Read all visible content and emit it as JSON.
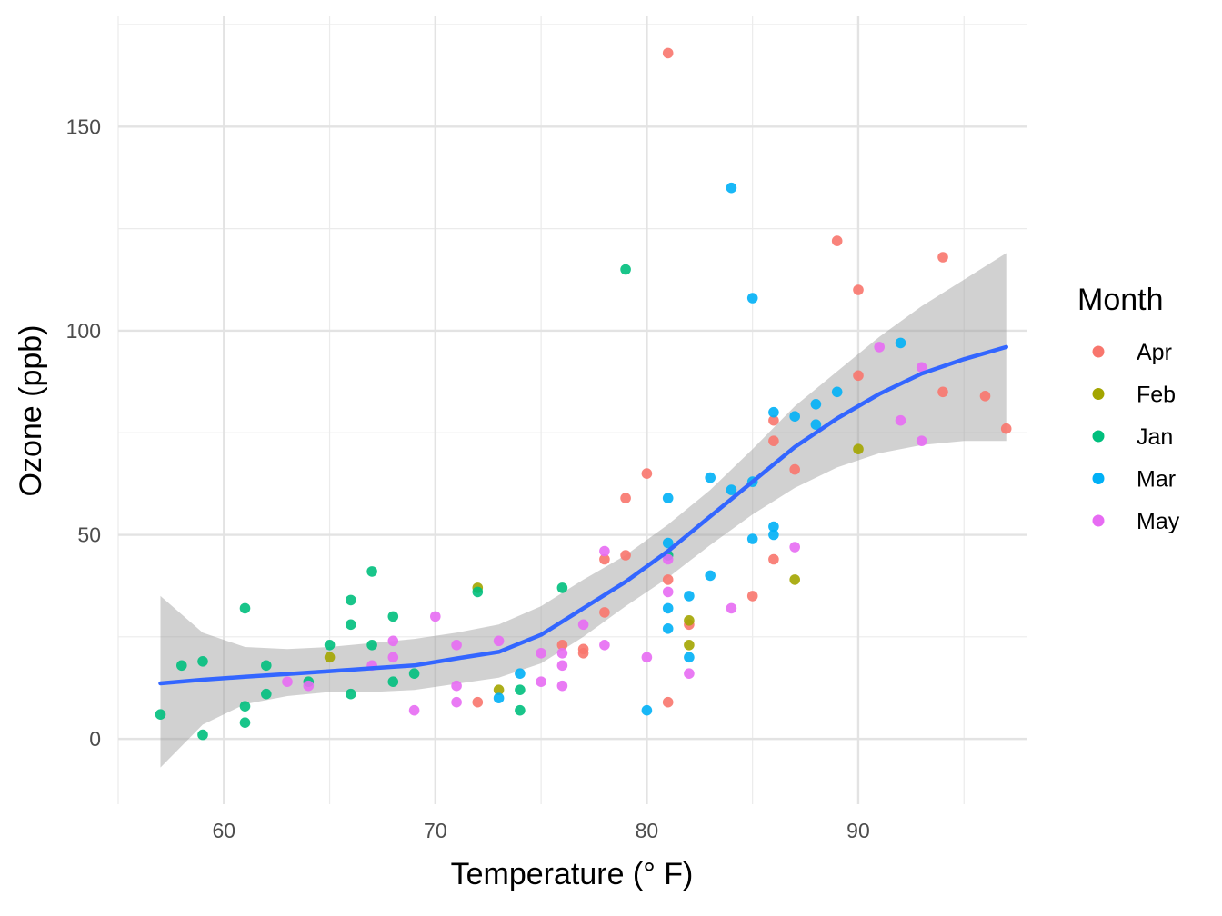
{
  "chart_data": {
    "type": "scatter",
    "title": "",
    "xlabel": "Temperature (° F)",
    "ylabel": "Ozone (ppb)",
    "xlim": [
      55,
      98
    ],
    "ylim": [
      -16,
      177
    ],
    "x_ticks": [
      60,
      70,
      80,
      90
    ],
    "y_ticks": [
      0,
      50,
      100,
      150
    ],
    "grid": true,
    "legend": {
      "title": "Month",
      "position": "right"
    },
    "series": [
      {
        "name": "Apr",
        "color": "#F8766D",
        "points": [
          [
            81,
            168
          ],
          [
            89,
            122
          ],
          [
            94,
            118
          ],
          [
            90,
            110
          ],
          [
            90,
            89
          ],
          [
            94,
            85
          ],
          [
            96,
            84
          ],
          [
            97,
            76
          ],
          [
            86,
            78
          ],
          [
            86,
            73
          ],
          [
            87,
            66
          ],
          [
            80,
            65
          ],
          [
            79,
            59
          ],
          [
            79,
            45
          ],
          [
            78,
            44
          ],
          [
            86,
            44
          ],
          [
            85,
            35
          ],
          [
            81,
            39
          ],
          [
            82,
            28
          ],
          [
            78,
            31
          ],
          [
            76,
            23
          ],
          [
            77,
            21
          ],
          [
            77,
            22
          ],
          [
            72,
            9
          ],
          [
            81,
            9
          ]
        ]
      },
      {
        "name": "Feb",
        "color": "#A3A500",
        "points": [
          [
            90,
            71
          ],
          [
            87,
            39
          ],
          [
            82,
            29
          ],
          [
            82,
            23
          ],
          [
            72,
            37
          ],
          [
            73,
            12
          ],
          [
            65,
            20
          ]
        ]
      },
      {
        "name": "Jan",
        "color": "#00BF7D",
        "points": [
          [
            79,
            115
          ],
          [
            67,
            41
          ],
          [
            72,
            36
          ],
          [
            76,
            37
          ],
          [
            61,
            32
          ],
          [
            66,
            34
          ],
          [
            68,
            30
          ],
          [
            66,
            28
          ],
          [
            65,
            23
          ],
          [
            67,
            23
          ],
          [
            62,
            18
          ],
          [
            58,
            18
          ],
          [
            59,
            19
          ],
          [
            64,
            14
          ],
          [
            68,
            14
          ],
          [
            69,
            16
          ],
          [
            61,
            8
          ],
          [
            62,
            11
          ],
          [
            66,
            11
          ],
          [
            74,
            12
          ],
          [
            74,
            7
          ],
          [
            57,
            6
          ],
          [
            61,
            4
          ],
          [
            59,
            1
          ],
          [
            81,
            45
          ]
        ]
      },
      {
        "name": "Mar",
        "color": "#00B0F6",
        "points": [
          [
            84,
            135
          ],
          [
            85,
            108
          ],
          [
            92,
            97
          ],
          [
            89,
            85
          ],
          [
            88,
            82
          ],
          [
            86,
            80
          ],
          [
            87,
            79
          ],
          [
            88,
            77
          ],
          [
            83,
            64
          ],
          [
            85,
            63
          ],
          [
            84,
            61
          ],
          [
            81,
            59
          ],
          [
            86,
            52
          ],
          [
            86,
            50
          ],
          [
            85,
            49
          ],
          [
            81,
            48
          ],
          [
            83,
            40
          ],
          [
            82,
            35
          ],
          [
            81,
            32
          ],
          [
            81,
            27
          ],
          [
            82,
            20
          ],
          [
            74,
            16
          ],
          [
            73,
            10
          ],
          [
            80,
            7
          ]
        ]
      },
      {
        "name": "May",
        "color": "#E76BF3",
        "points": [
          [
            91,
            96
          ],
          [
            93,
            91
          ],
          [
            92,
            78
          ],
          [
            93,
            73
          ],
          [
            87,
            47
          ],
          [
            78,
            46
          ],
          [
            81,
            44
          ],
          [
            81,
            36
          ],
          [
            84,
            32
          ],
          [
            70,
            30
          ],
          [
            77,
            28
          ],
          [
            68,
            24
          ],
          [
            73,
            24
          ],
          [
            71,
            23
          ],
          [
            78,
            23
          ],
          [
            75,
            21
          ],
          [
            76,
            21
          ],
          [
            68,
            20
          ],
          [
            80,
            20
          ],
          [
            67,
            18
          ],
          [
            76,
            18
          ],
          [
            82,
            16
          ],
          [
            63,
            14
          ],
          [
            64,
            13
          ],
          [
            75,
            14
          ],
          [
            71,
            13
          ],
          [
            76,
            13
          ],
          [
            71,
            9
          ],
          [
            69,
            7
          ]
        ]
      }
    ],
    "smooth": {
      "color": "#3366FF",
      "band_color": "#999999",
      "x": [
        57,
        59,
        61,
        63,
        65,
        67,
        69,
        71,
        73,
        75,
        77,
        79,
        81,
        83,
        85,
        87,
        89,
        91,
        93,
        95,
        97
      ],
      "y": [
        13.6,
        14.5,
        15.2,
        15.9,
        16.6,
        17.3,
        18.0,
        19.7,
        21.3,
        25.5,
        32.0,
        38.5,
        46.0,
        54.5,
        63.0,
        71.5,
        78.5,
        84.5,
        89.5,
        93.0,
        96.0
      ],
      "lower": [
        -7.0,
        3.5,
        8.5,
        10.5,
        11.5,
        11.5,
        12.0,
        13.5,
        15.0,
        18.5,
        25.0,
        32.5,
        39.5,
        47.5,
        55.0,
        61.5,
        66.5,
        70.0,
        72.0,
        73.0,
        73.0
      ],
      "upper": [
        35.0,
        26.0,
        22.5,
        22.0,
        22.5,
        23.5,
        24.5,
        26.0,
        28.0,
        32.5,
        39.0,
        45.0,
        52.5,
        61.0,
        71.0,
        81.5,
        90.0,
        98.5,
        106.0,
        112.5,
        119.0
      ]
    }
  }
}
